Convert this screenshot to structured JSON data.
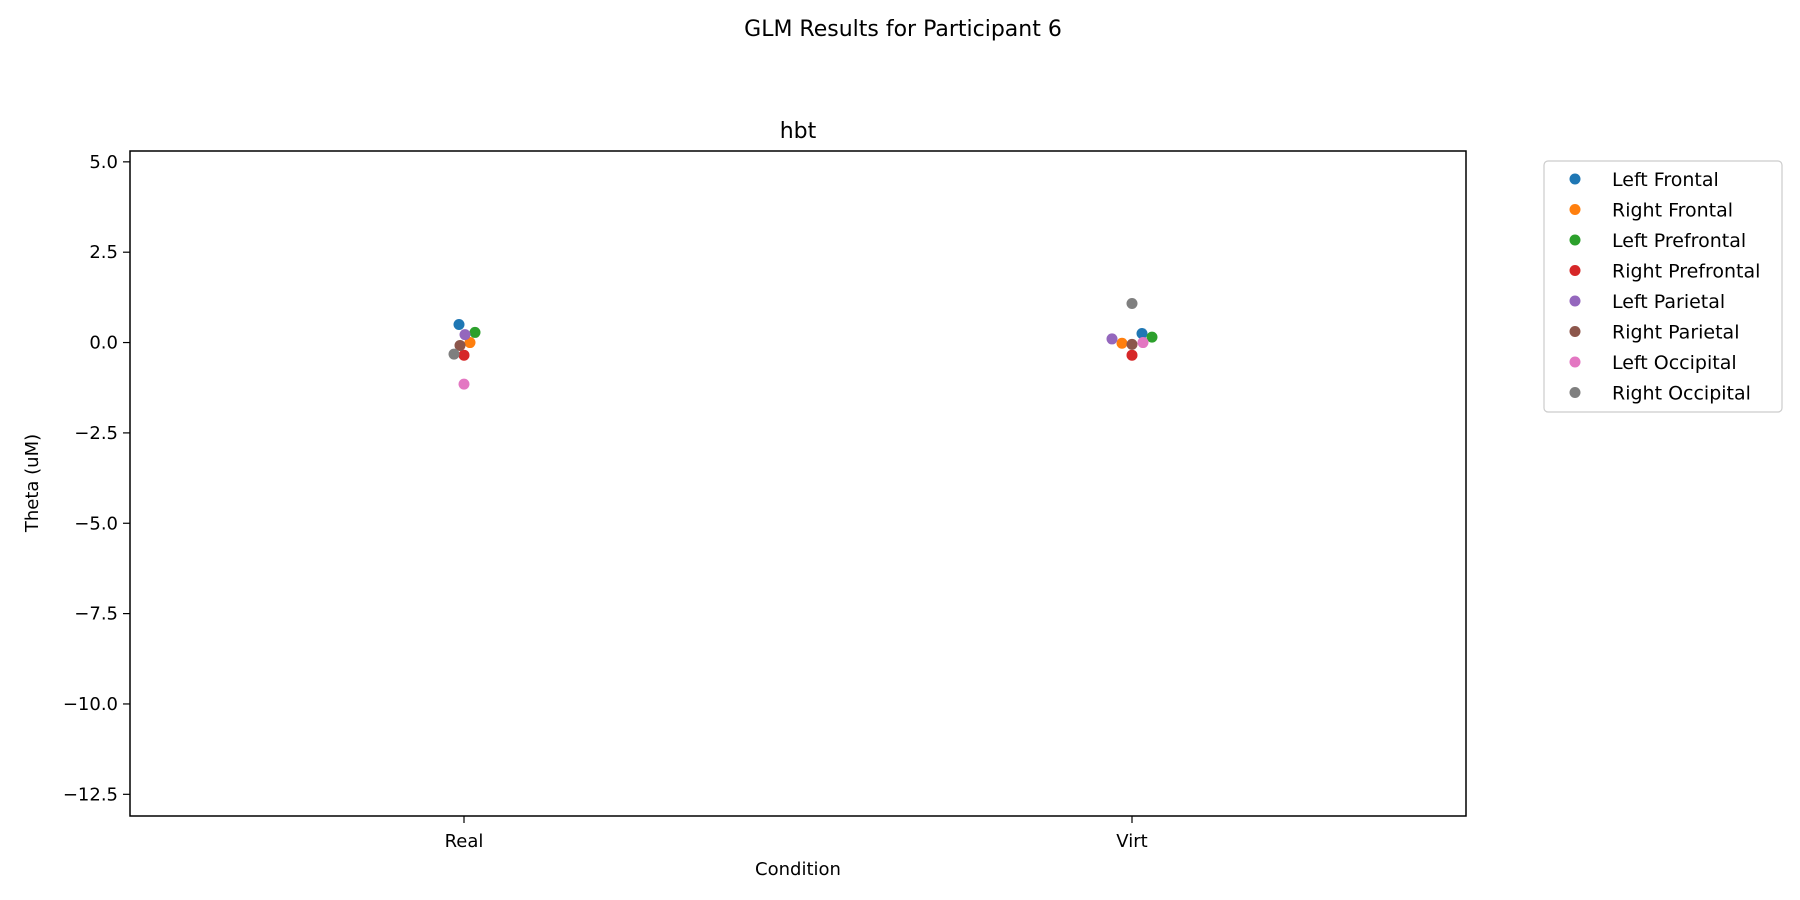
{
  "chart_data": {
    "type": "scatter",
    "suptitle": "GLM Results for Participant 6",
    "title": "hbt",
    "xlabel": "Condition",
    "ylabel": "Theta (uM)",
    "categories": [
      "Real",
      "Virt"
    ],
    "ylim": [
      -13.1,
      5.3
    ],
    "yticks": [
      5.0,
      2.5,
      0.0,
      -2.5,
      -5.0,
      -7.5,
      -10.0,
      -12.5
    ],
    "ytick_labels": [
      "5.0",
      "2.5",
      "0.0",
      "−2.5",
      "−5.0",
      "−7.5",
      "−10.0",
      "−12.5"
    ],
    "grid": false,
    "legend_position": "outside-right-top",
    "series": [
      {
        "name": "Left Frontal",
        "color": "#1f77b4",
        "values": [
          0.5,
          0.25
        ]
      },
      {
        "name": "Right Frontal",
        "color": "#ff7f0e",
        "values": [
          0.0,
          -0.02
        ]
      },
      {
        "name": "Left Prefrontal",
        "color": "#2ca02c",
        "values": [
          0.28,
          0.15
        ]
      },
      {
        "name": "Right Prefrontal",
        "color": "#d62728",
        "values": [
          -0.35,
          -0.35
        ]
      },
      {
        "name": "Left Parietal",
        "color": "#9467bd",
        "values": [
          0.22,
          0.1
        ]
      },
      {
        "name": "Right Parietal",
        "color": "#8c564b",
        "values": [
          -0.08,
          -0.05
        ]
      },
      {
        "name": "Left Occipital",
        "color": "#e377c2",
        "values": [
          -1.15,
          0.0
        ]
      },
      {
        "name": "Right Occipital",
        "color": "#7f7f7f",
        "values": [
          -0.32,
          1.08
        ]
      }
    ]
  }
}
